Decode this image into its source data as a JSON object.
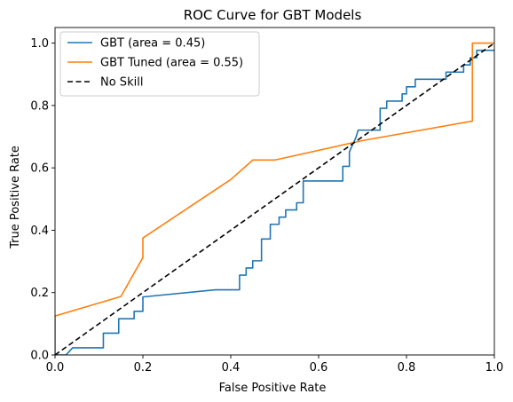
{
  "chart_data": {
    "type": "line",
    "title": "ROC Curve for GBT Models",
    "xlabel": "False Positive Rate",
    "ylabel": "True Positive Rate",
    "xlim": [
      0,
      1
    ],
    "ylim": [
      0,
      1.05
    ],
    "xticks": [
      0,
      0.2,
      0.4,
      0.6,
      0.8,
      1
    ],
    "xtick_labels": [
      "0.0",
      "0.2",
      "0.4",
      "0.6",
      "0.8",
      "1.0"
    ],
    "yticks": [
      0,
      0.2,
      0.4,
      0.6,
      0.8,
      1
    ],
    "ytick_labels": [
      "0.0",
      "0.2",
      "0.4",
      "0.6",
      "0.8",
      "1.0"
    ],
    "grid": false,
    "legend_position": "top-left",
    "series": [
      {
        "name": "GBT (area = 0.45)",
        "color": "#1f77b4",
        "style": "solid",
        "x": [
          0,
          0.025,
          0.04,
          0.11,
          0.11,
          0.145,
          0.145,
          0.18,
          0.18,
          0.2,
          0.2,
          0.365,
          0.42,
          0.42,
          0.435,
          0.435,
          0.45,
          0.45,
          0.47,
          0.47,
          0.49,
          0.49,
          0.51,
          0.51,
          0.525,
          0.525,
          0.55,
          0.55,
          0.565,
          0.565,
          0.655,
          0.655,
          0.67,
          0.67,
          0.685,
          0.69,
          0.705,
          0.71,
          0.74,
          0.74,
          0.755,
          0.755,
          0.77,
          0.77,
          0.79,
          0.79,
          0.8,
          0.8,
          0.82,
          0.82,
          0.89,
          0.89,
          0.93,
          0.93,
          0.945,
          0.945,
          0.96,
          0.96,
          0.98,
          0.98,
          1
        ],
        "y": [
          0,
          0,
          0.023,
          0.023,
          0.07,
          0.07,
          0.116,
          0.116,
          0.14,
          0.14,
          0.186,
          0.209,
          0.209,
          0.256,
          0.256,
          0.279,
          0.279,
          0.302,
          0.302,
          0.372,
          0.372,
          0.419,
          0.419,
          0.442,
          0.442,
          0.465,
          0.465,
          0.488,
          0.488,
          0.558,
          0.558,
          0.605,
          0.605,
          0.651,
          0.698,
          0.721,
          0.721,
          0.721,
          0.721,
          0.791,
          0.791,
          0.814,
          0.814,
          0.814,
          0.814,
          0.837,
          0.837,
          0.86,
          0.86,
          0.884,
          0.884,
          0.907,
          0.907,
          0.93,
          0.93,
          0.953,
          0.953,
          0.977,
          0.977,
          0.977,
          0.977
        ]
      },
      {
        "name": "GBT Tuned (area = 0.55)",
        "color": "#ff7f0e",
        "style": "solid",
        "x": [
          0,
          0,
          0.15,
          0.2,
          0.2,
          0.4,
          0.45,
          0.5,
          0.7,
          0.95,
          0.95,
          1
        ],
        "y": [
          0,
          0.125,
          0.1875,
          0.3125,
          0.375,
          0.5625,
          0.625,
          0.625,
          0.6875,
          0.75,
          1,
          1
        ]
      },
      {
        "name": "No Skill",
        "color": "#000000",
        "style": "dashed",
        "x": [
          0,
          1
        ],
        "y": [
          0,
          1
        ]
      }
    ]
  }
}
